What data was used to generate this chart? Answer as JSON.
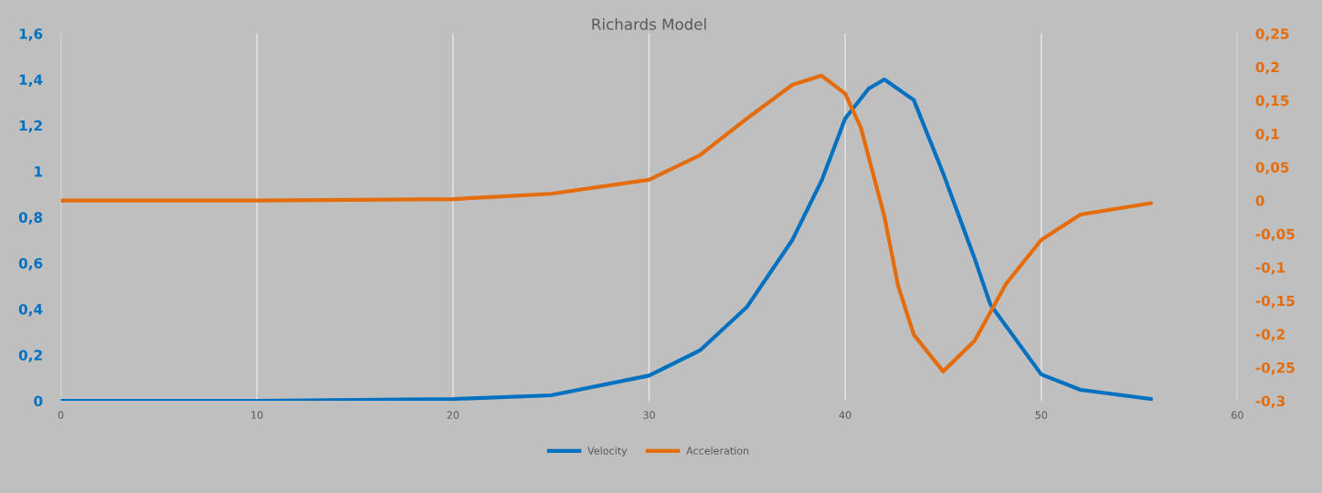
{
  "chart_data": {
    "type": "line",
    "title": "Richards Model",
    "xlim": [
      0,
      60
    ],
    "xticks": [
      0,
      10,
      20,
      30,
      40,
      50,
      60
    ],
    "ylim": [
      0,
      1.6
    ],
    "yticks": [
      0,
      {
        "value": 0.2,
        "label": "0,2"
      },
      {
        "value": 0.4,
        "label": "0,4"
      },
      {
        "value": 0.6,
        "label": "0,6"
      },
      {
        "value": 0.8,
        "label": "0,8"
      },
      1,
      {
        "value": 1.2,
        "label": "1,2"
      },
      {
        "value": 1.4,
        "label": "1,4"
      },
      {
        "value": 1.6,
        "label": "1,6"
      }
    ],
    "y2lim": [
      -0.3,
      0.25
    ],
    "y2ticks": [
      {
        "value": -0.3,
        "label": "-0,3"
      },
      {
        "value": -0.25,
        "label": "-0,25"
      },
      {
        "value": -0.2,
        "label": "-0,2"
      },
      {
        "value": -0.15,
        "label": "-0,15"
      },
      {
        "value": -0.1,
        "label": "-0,1"
      },
      {
        "value": -0.05,
        "label": "-0,05"
      },
      0,
      {
        "value": 0.05,
        "label": "0,05"
      },
      {
        "value": 0.1,
        "label": "0,1"
      },
      {
        "value": 0.15,
        "label": "0,15"
      },
      {
        "value": 0.2,
        "label": "0,2"
      },
      {
        "value": 0.25,
        "label": "0,25"
      }
    ],
    "grid": "x",
    "legend": "bottom",
    "line_style": "solid",
    "marker": "none",
    "series": [
      {
        "name": "Velocity",
        "color": "#0070c0",
        "x": [
          0,
          10,
          20,
          25,
          30,
          32.6,
          35,
          37.3,
          38.8,
          40,
          41.2,
          42,
          43.5,
          45,
          46.6,
          47.4,
          50,
          52,
          55.6
        ],
        "values": [
          0,
          0,
          0.008,
          0.024,
          0.11,
          0.22,
          0.41,
          0.7,
          0.96,
          1.23,
          1.36,
          1.4,
          1.31,
          0.99,
          0.62,
          0.42,
          0.115,
          0.048,
          0.008
        ]
      },
      {
        "name": "Acceleration",
        "color": "#e46c0a",
        "axis": "y2",
        "x": [
          0,
          10,
          20,
          25,
          30,
          32.6,
          35,
          37.3,
          38.8,
          40,
          40.8,
          42,
          42.7,
          43.5,
          45,
          46.6,
          48.2,
          50,
          52,
          55.6
        ],
        "values": [
          0,
          0,
          0.002,
          0.01,
          0.031,
          0.068,
          0.123,
          0.173,
          0.187,
          0.16,
          0.109,
          -0.024,
          -0.128,
          -0.201,
          -0.256,
          -0.21,
          -0.125,
          -0.059,
          -0.021,
          -0.004
        ]
      }
    ]
  }
}
